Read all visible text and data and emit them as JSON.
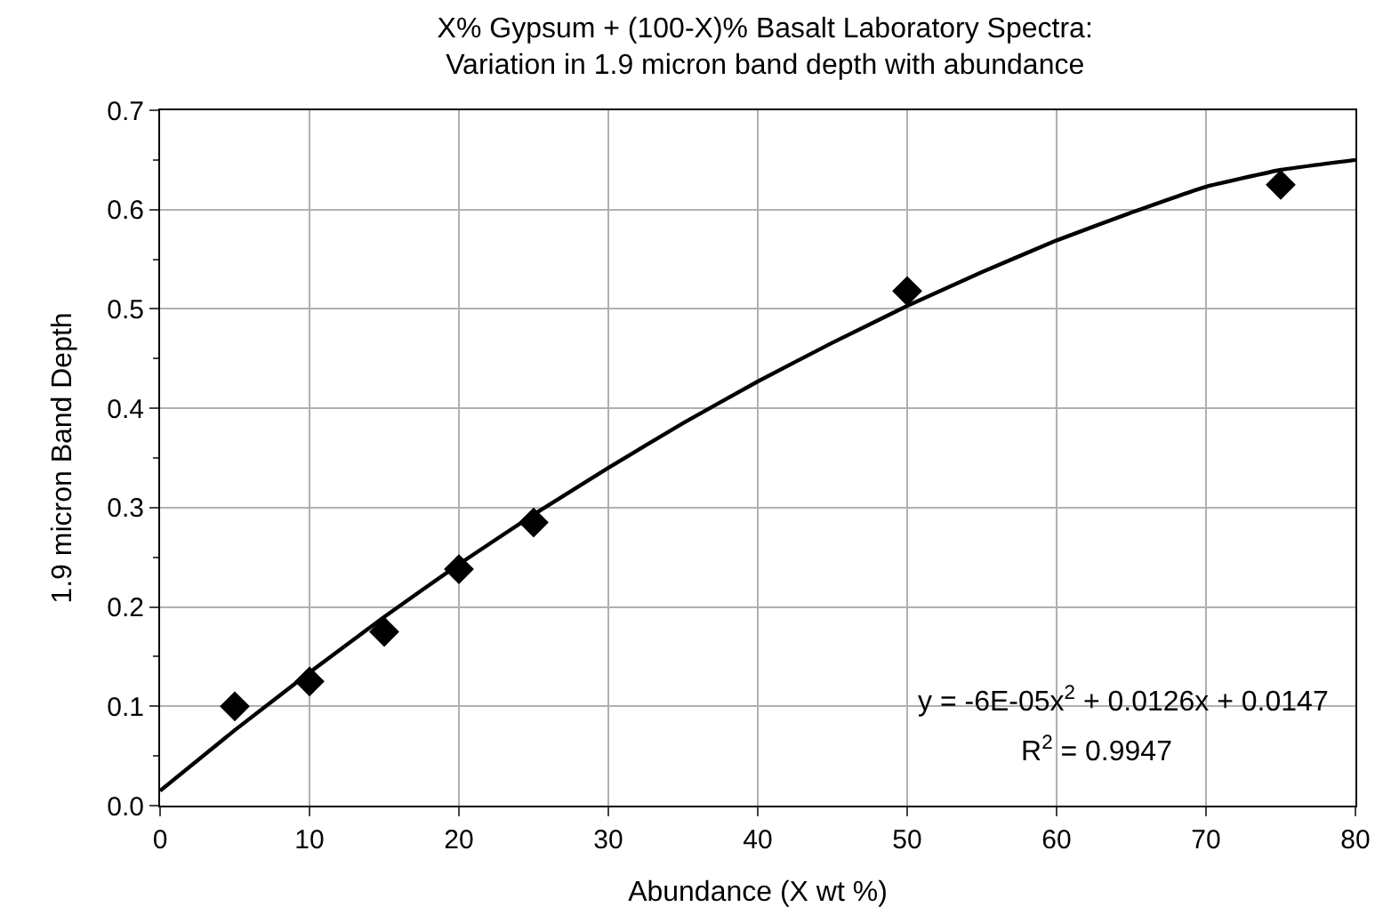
{
  "chart_data": {
    "type": "scatter",
    "title": "X% Gypsum + (100-X)% Basalt Laboratory Spectra:",
    "subtitle": "Variation in 1.9 micron band depth with abundance",
    "xlabel": "Abundance (X wt %)",
    "ylabel": "1.9 micron Band Depth",
    "x": [
      5,
      10,
      15,
      20,
      25,
      50,
      75
    ],
    "series": [
      {
        "color": "#000000",
        "marker": "diamond",
        "values": [
          0.1,
          0.125,
          0.175,
          0.238,
          0.285,
          0.518,
          0.625
        ]
      },
      {
        "type": "line",
        "color": "#000000",
        "marker": "none",
        "x": [
          0,
          5,
          10,
          15,
          20,
          25,
          30,
          35,
          40,
          45,
          50,
          55,
          60,
          65,
          70,
          75,
          80
        ],
        "values": [
          0.015,
          0.076,
          0.134,
          0.19,
          0.243,
          0.293,
          0.34,
          0.385,
          0.427,
          0.466,
          0.503,
          0.537,
          0.569,
          0.597,
          0.623,
          0.64,
          0.65
        ]
      }
    ],
    "xlim": [
      0,
      80
    ],
    "xticks": [
      0,
      10,
      20,
      30,
      40,
      50,
      60,
      70,
      80
    ],
    "ylim": [
      0,
      0.7
    ],
    "yticks": [
      {
        "value": 0,
        "label": "0.0"
      },
      {
        "value": 0.1,
        "label": "0.1"
      },
      {
        "value": 0.2,
        "label": "0.2"
      },
      {
        "value": 0.3,
        "label": "0.3"
      },
      {
        "value": 0.4,
        "label": "0.4"
      },
      {
        "value": 0.5,
        "label": "0.5"
      },
      {
        "value": 0.6,
        "label": "0.6"
      },
      {
        "value": 0.7,
        "label": "0.7"
      }
    ],
    "grid": true,
    "legend": false,
    "annotations": [
      "y = -6E-05x$^{2}$ + 0.0126x + 0.0147",
      "R$^{2}$ = 0.9947"
    ]
  }
}
